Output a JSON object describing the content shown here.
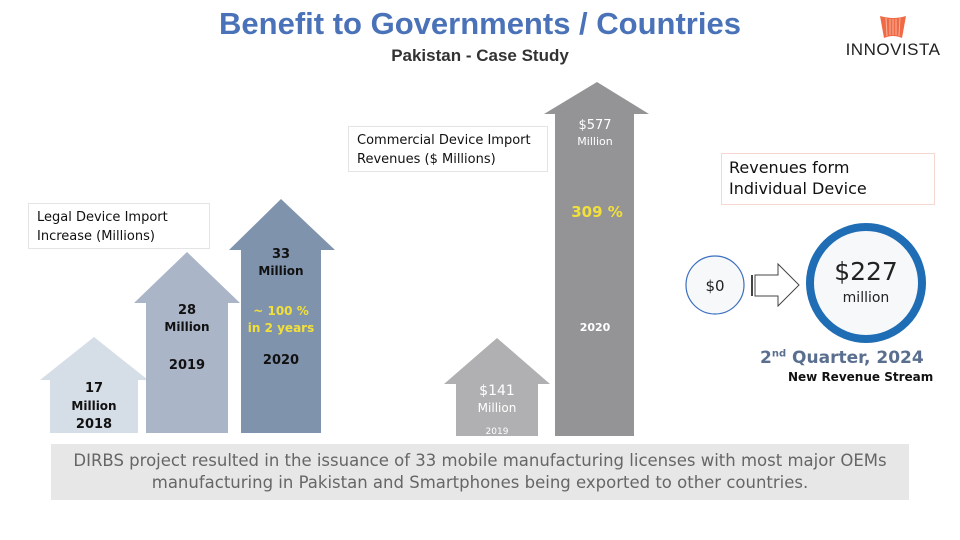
{
  "header": {
    "title": "Benefit to Governments / Countries",
    "subtitle": "Pakistan - Case Study",
    "logo_text": "INNOVISTA"
  },
  "legal_imports": {
    "label": "Legal Device Import Increase (Millions)",
    "label_line1": "Legal Device Import",
    "label_line2": "Increase (Millions)",
    "arrows": [
      {
        "value": "17",
        "unit": "Million",
        "year": "2018",
        "color": "#d5dde6"
      },
      {
        "value": "28",
        "unit": "Million",
        "year": "2019",
        "color": "#aab5c8"
      },
      {
        "value": "33",
        "unit": "Million",
        "year": "2020",
        "color": "#8093ad",
        "note_line1": "~ 100 %",
        "note_line2": "in 2 years"
      }
    ]
  },
  "commercial_imports": {
    "label_line1": "Commercial Device Import",
    "label_line2": "Revenues ($ Millions)",
    "arrows": [
      {
        "value": "$141",
        "unit": "Million",
        "year": "2019",
        "color": "#b0b0b2"
      },
      {
        "value": "$577",
        "unit": "Million",
        "year": "2020",
        "color": "#949497",
        "growth": "309 %"
      }
    ]
  },
  "individual": {
    "label_line1": "Revenues form",
    "label_line2": "Individual Device",
    "from_value": "$0",
    "to_value": "$227",
    "to_unit": "million",
    "quarter_num": "2",
    "quarter_sup": "nd",
    "quarter_rest": " Quarter, 2024",
    "stream": "New Revenue Stream",
    "ring_color": "#1f6db4"
  },
  "footer": {
    "line1": "DIRBS project resulted in the issuance of 33 mobile manufacturing licenses with most major OEMs",
    "line2": "manufacturing in Pakistan and Smartphones being exported to other countries."
  }
}
